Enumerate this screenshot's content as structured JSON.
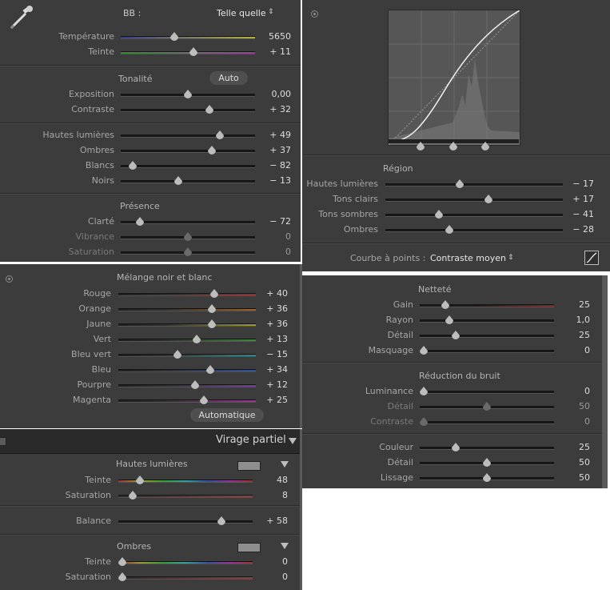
{
  "basic": {
    "wb_label": "BB :",
    "wb_value": "Telle quelle",
    "wb_sliders": [
      {
        "label": "Température",
        "value": "5650",
        "pos": 0.4,
        "track": "linear-gradient(90deg,#3a3a8c,#7a7a6a,#b3b33a)"
      },
      {
        "label": "Teinte",
        "value": "+ 11",
        "pos": 0.54,
        "track": "linear-gradient(90deg,#2d8a2d,#6b6b6b,#9a3a9a)"
      }
    ],
    "tone_title": "Tonalité",
    "auto_label": "Auto",
    "tone_sliders": [
      {
        "label": "Exposition",
        "value": "0,00",
        "pos": 0.5
      },
      {
        "label": "Contraste",
        "value": "+ 32",
        "pos": 0.66
      }
    ],
    "light_sliders": [
      {
        "label": "Hautes lumières",
        "value": "+ 49",
        "pos": 0.74
      },
      {
        "label": "Ombres",
        "value": "+ 37",
        "pos": 0.68
      },
      {
        "label": "Blancs",
        "value": "− 82",
        "pos": 0.09
      },
      {
        "label": "Noirs",
        "value": "− 13",
        "pos": 0.43
      }
    ],
    "presence_title": "Présence",
    "presence_sliders": [
      {
        "label": "Clarté",
        "value": "− 72",
        "pos": 0.14,
        "dim": false
      },
      {
        "label": "Vibrance",
        "value": "0",
        "pos": 0.5,
        "dim": true
      },
      {
        "label": "Saturation",
        "value": "0",
        "pos": 0.5,
        "dim": true
      }
    ]
  },
  "curve": {
    "region_title": "Région",
    "region_sliders": [
      {
        "label": "Hautes lumières",
        "value": "− 17",
        "pos": 0.42
      },
      {
        "label": "Tons clairs",
        "value": "+ 17",
        "pos": 0.58
      },
      {
        "label": "Tons sombres",
        "value": "− 41",
        "pos": 0.3
      },
      {
        "label": "Ombres",
        "value": "− 28",
        "pos": 0.36
      }
    ],
    "point_curve_label": "Courbe à points :",
    "point_curve_value": "Contraste moyen"
  },
  "bw": {
    "title": "Mélange noir et blanc",
    "sliders": [
      {
        "label": "Rouge",
        "value": "+ 40",
        "pos": 0.7,
        "color": "#9a3030"
      },
      {
        "label": "Orange",
        "value": "+ 36",
        "pos": 0.68,
        "color": "#a06020"
      },
      {
        "label": "Jaune",
        "value": "+ 36",
        "pos": 0.68,
        "color": "#a09a30"
      },
      {
        "label": "Vert",
        "value": "+ 13",
        "pos": 0.57,
        "color": "#3a8a3a"
      },
      {
        "label": "Bleu vert",
        "value": "− 15",
        "pos": 0.43,
        "color": "#2a8a8a"
      },
      {
        "label": "Bleu",
        "value": "+ 34",
        "pos": 0.67,
        "color": "#3050a0"
      },
      {
        "label": "Pourpre",
        "value": "+ 12",
        "pos": 0.56,
        "color": "#7040a0"
      },
      {
        "label": "Magenta",
        "value": "+ 25",
        "pos": 0.62,
        "color": "#a0309a"
      }
    ],
    "auto_label": "Automatique"
  },
  "split": {
    "title": "Virage partiel",
    "highlights_title": "Hautes lumières",
    "highlights_sliders": [
      {
        "label": "Teinte",
        "value": "48",
        "pos": 0.16,
        "track": "linear-gradient(90deg,#9a3030,#9a9a30,#30a030,#30a0a0,#3050a0,#9a309a,#9a3030)"
      },
      {
        "label": "Saturation",
        "value": "8",
        "pos": 0.11,
        "track": "linear-gradient(90deg,#2a2a2a,#8a4040)"
      }
    ],
    "balance_label": "Balance",
    "balance_value": "+ 58",
    "balance_pos": 0.77,
    "shadows_title": "Ombres",
    "shadows_sliders": [
      {
        "label": "Teinte",
        "value": "0",
        "pos": 0.03,
        "track": "linear-gradient(90deg,#9a3030,#9a9a30,#30a030,#30a0a0,#3050a0,#9a309a,#9a3030)"
      },
      {
        "label": "Saturation",
        "value": "0",
        "pos": 0.03,
        "track": "linear-gradient(90deg,#2a2a2a,#8a4040)"
      }
    ]
  },
  "detail": {
    "sharpen_title": "Netteté",
    "sharpen_sliders": [
      {
        "label": "Gain",
        "value": "25",
        "pos": 0.19,
        "track": "linear-gradient(90deg,#1a1a1a,#1a1a1a 40%,#7a2a2a)"
      },
      {
        "label": "Rayon",
        "value": "1,0",
        "pos": 0.22
      },
      {
        "label": "Détail",
        "value": "25",
        "pos": 0.27
      },
      {
        "label": "Masquage",
        "value": "0",
        "pos": 0.03
      }
    ],
    "noise_title": "Réduction du bruit",
    "noise_sliders": [
      {
        "label": "Luminance",
        "value": "0",
        "pos": 0.03,
        "dim": false
      },
      {
        "label": "Détail",
        "value": "50",
        "pos": 0.5,
        "dim": true
      },
      {
        "label": "Contraste",
        "value": "0",
        "pos": 0.03,
        "dim": true
      }
    ],
    "color_sliders": [
      {
        "label": "Couleur",
        "value": "25",
        "pos": 0.27
      },
      {
        "label": "Détail",
        "value": "50",
        "pos": 0.5
      },
      {
        "label": "Lissage",
        "value": "50",
        "pos": 0.5
      }
    ]
  }
}
